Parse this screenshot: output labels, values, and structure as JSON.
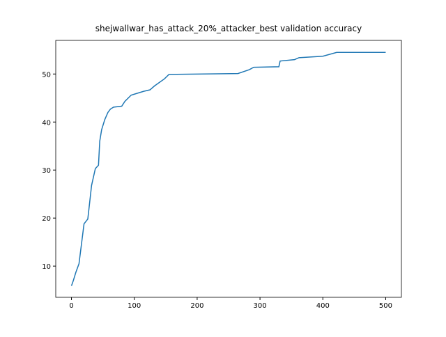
{
  "chart_data": {
    "type": "line",
    "title": "shejwallwar_has_attack_20%_attacker_best validation accuracy",
    "x": [
      0,
      3,
      7,
      12,
      20,
      26,
      32,
      38,
      43,
      45,
      48,
      53,
      58,
      62,
      67,
      80,
      85,
      95,
      105,
      115,
      125,
      132,
      148,
      155,
      265,
      283,
      290,
      330,
      332,
      355,
      362,
      400,
      422,
      500
    ],
    "series": [
      {
        "color": "#1f77b4",
        "values": [
          5.9,
          7.0,
          8.7,
          10.5,
          18.8,
          19.8,
          26.8,
          30.3,
          31.0,
          36.0,
          38.4,
          40.5,
          42.0,
          42.7,
          43.1,
          43.3,
          44.3,
          45.6,
          46.0,
          46.4,
          46.7,
          47.5,
          49.0,
          49.9,
          50.1,
          50.9,
          51.4,
          51.5,
          52.7,
          53.0,
          53.4,
          53.7,
          54.5,
          54.5
        ]
      }
    ],
    "xlim": [
      -25,
      525
    ],
    "ylim": [
      3.5,
      57
    ],
    "xticks": [
      0,
      100,
      200,
      300,
      400,
      500
    ],
    "yticks": [
      10,
      20,
      30,
      40,
      50
    ]
  }
}
